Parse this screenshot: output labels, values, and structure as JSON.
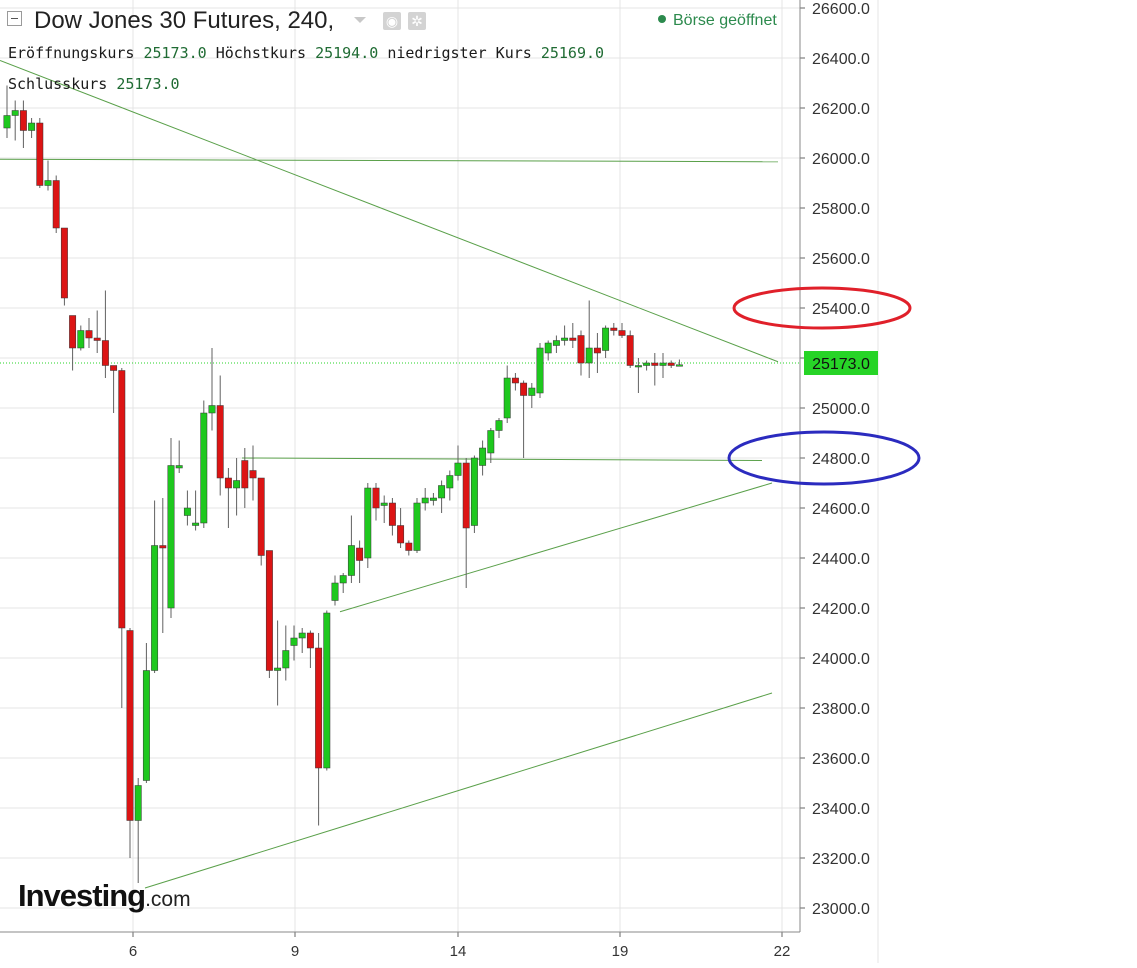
{
  "header": {
    "title": "Dow Jones 30 Futures, 240,",
    "status": "Börse geöffnet",
    "open_label": "Eröffnungskurs",
    "open_value": "25173.0",
    "high_label": "Höchstkurs",
    "high_value": "25194.0",
    "low_label": "niedrigster Kurs",
    "low_value": "25169.0",
    "close_label": "Schlusskurs",
    "close_value": "25173.0"
  },
  "logo": {
    "text": "Investing",
    "suffix": ".com"
  },
  "colors": {
    "up": "#1ec81e",
    "down": "#dc1414",
    "wick": "#606060",
    "trendline": "#5aa04a",
    "price_tag": "#27d427",
    "grid": "#e4e4e4",
    "ellipse_red": "#e0202a",
    "ellipse_blue": "#2b2bbf"
  },
  "chart_data": {
    "type": "candlestick",
    "timeframe": "240",
    "ylim": [
      22930,
      26700
    ],
    "y_ticks": [
      "26600.0",
      "26400.0",
      "26200.0",
      "26000.0",
      "25800.0",
      "25600.0",
      "25400.0",
      "25200.0",
      "25000.0",
      "24800.0",
      "24600.0",
      "24400.0",
      "24200.0",
      "24000.0",
      "23800.0",
      "23600.0",
      "23400.0",
      "23200.0",
      "23000.0"
    ],
    "x_ticks": [
      "6",
      "9",
      "14",
      "19",
      "22"
    ],
    "last_price": "25173.0",
    "candles": [
      {
        "o": 26120,
        "h": 26290,
        "l": 26080,
        "c": 26170
      },
      {
        "o": 26170,
        "h": 26230,
        "l": 26070,
        "c": 26190
      },
      {
        "o": 26190,
        "h": 26230,
        "l": 26040,
        "c": 26110
      },
      {
        "o": 26110,
        "h": 26160,
        "l": 26080,
        "c": 26140
      },
      {
        "o": 26140,
        "h": 26160,
        "l": 25880,
        "c": 25890
      },
      {
        "o": 25890,
        "h": 25990,
        "l": 25870,
        "c": 25910
      },
      {
        "o": 25910,
        "h": 25930,
        "l": 25700,
        "c": 25720
      },
      {
        "o": 25720,
        "h": 25720,
        "l": 25410,
        "c": 25440
      },
      {
        "o": 25370,
        "h": 25370,
        "l": 25150,
        "c": 25240
      },
      {
        "o": 25240,
        "h": 25330,
        "l": 25230,
        "c": 25310
      },
      {
        "o": 25310,
        "h": 25360,
        "l": 25240,
        "c": 25280
      },
      {
        "o": 25280,
        "h": 25390,
        "l": 25220,
        "c": 25270
      },
      {
        "o": 25270,
        "h": 25470,
        "l": 25120,
        "c": 25170
      },
      {
        "o": 25170,
        "h": 25170,
        "l": 24980,
        "c": 25150
      },
      {
        "o": 25150,
        "h": 25160,
        "l": 23800,
        "c": 24120
      },
      {
        "o": 24110,
        "h": 24120,
        "l": 23200,
        "c": 23350
      },
      {
        "o": 23350,
        "h": 23520,
        "l": 23100,
        "c": 23490
      },
      {
        "o": 23510,
        "h": 24060,
        "l": 23500,
        "c": 23950
      },
      {
        "o": 23950,
        "h": 24630,
        "l": 23940,
        "c": 24450
      },
      {
        "o": 24450,
        "h": 24640,
        "l": 24100,
        "c": 24440
      },
      {
        "o": 24200,
        "h": 24880,
        "l": 24160,
        "c": 24770
      },
      {
        "o": 24760,
        "h": 24870,
        "l": 24740,
        "c": 24770
      },
      {
        "o": 24570,
        "h": 24670,
        "l": 24530,
        "c": 24600
      },
      {
        "o": 24530,
        "h": 24670,
        "l": 24510,
        "c": 24540
      },
      {
        "o": 24540,
        "h": 25030,
        "l": 24520,
        "c": 24980
      },
      {
        "o": 24980,
        "h": 25240,
        "l": 24910,
        "c": 25010
      },
      {
        "o": 25010,
        "h": 25130,
        "l": 24650,
        "c": 24720
      },
      {
        "o": 24720,
        "h": 24760,
        "l": 24520,
        "c": 24680
      },
      {
        "o": 24680,
        "h": 24800,
        "l": 24570,
        "c": 24710
      },
      {
        "o": 24790,
        "h": 24840,
        "l": 24600,
        "c": 24680
      },
      {
        "o": 24750,
        "h": 24850,
        "l": 24630,
        "c": 24720
      },
      {
        "o": 24720,
        "h": 24720,
        "l": 24370,
        "c": 24410
      },
      {
        "o": 24430,
        "h": 24430,
        "l": 23920,
        "c": 23950
      },
      {
        "o": 23950,
        "h": 24150,
        "l": 23810,
        "c": 23960
      },
      {
        "o": 23960,
        "h": 24130,
        "l": 23910,
        "c": 24030
      },
      {
        "o": 24050,
        "h": 24130,
        "l": 23990,
        "c": 24080
      },
      {
        "o": 24080,
        "h": 24120,
        "l": 24020,
        "c": 24100
      },
      {
        "o": 24100,
        "h": 24110,
        "l": 23960,
        "c": 24040
      },
      {
        "o": 24040,
        "h": 24100,
        "l": 23330,
        "c": 23560
      },
      {
        "o": 23560,
        "h": 24190,
        "l": 23550,
        "c": 24180
      },
      {
        "o": 24230,
        "h": 24330,
        "l": 24210,
        "c": 24300
      },
      {
        "o": 24300,
        "h": 24340,
        "l": 24260,
        "c": 24330
      },
      {
        "o": 24330,
        "h": 24570,
        "l": 24300,
        "c": 24450
      },
      {
        "o": 24440,
        "h": 24470,
        "l": 24300,
        "c": 24390
      },
      {
        "o": 24400,
        "h": 24700,
        "l": 24360,
        "c": 24680
      },
      {
        "o": 24680,
        "h": 24700,
        "l": 24550,
        "c": 24600
      },
      {
        "o": 24610,
        "h": 24650,
        "l": 24540,
        "c": 24620
      },
      {
        "o": 24620,
        "h": 24640,
        "l": 24490,
        "c": 24530
      },
      {
        "o": 24530,
        "h": 24600,
        "l": 24440,
        "c": 24460
      },
      {
        "o": 24460,
        "h": 24470,
        "l": 24410,
        "c": 24430
      },
      {
        "o": 24430,
        "h": 24640,
        "l": 24420,
        "c": 24620
      },
      {
        "o": 24620,
        "h": 24680,
        "l": 24590,
        "c": 24640
      },
      {
        "o": 24630,
        "h": 24660,
        "l": 24610,
        "c": 24640
      },
      {
        "o": 24640,
        "h": 24710,
        "l": 24580,
        "c": 24690
      },
      {
        "o": 24680,
        "h": 24750,
        "l": 24630,
        "c": 24730
      },
      {
        "o": 24730,
        "h": 24850,
        "l": 24710,
        "c": 24780
      },
      {
        "o": 24780,
        "h": 24800,
        "l": 24280,
        "c": 24520
      },
      {
        "o": 24530,
        "h": 24810,
        "l": 24500,
        "c": 24800
      },
      {
        "o": 24770,
        "h": 24870,
        "l": 24730,
        "c": 24840
      },
      {
        "o": 24820,
        "h": 24920,
        "l": 24780,
        "c": 24910
      },
      {
        "o": 24910,
        "h": 24960,
        "l": 24880,
        "c": 24950
      },
      {
        "o": 24960,
        "h": 25170,
        "l": 24940,
        "c": 25120
      },
      {
        "o": 25120,
        "h": 25140,
        "l": 25070,
        "c": 25100
      },
      {
        "o": 25100,
        "h": 25110,
        "l": 24800,
        "c": 25050
      },
      {
        "o": 25050,
        "h": 25100,
        "l": 25000,
        "c": 25080
      },
      {
        "o": 25060,
        "h": 25260,
        "l": 25040,
        "c": 25240
      },
      {
        "o": 25220,
        "h": 25270,
        "l": 25190,
        "c": 25260
      },
      {
        "o": 25250,
        "h": 25290,
        "l": 25220,
        "c": 25270
      },
      {
        "o": 25270,
        "h": 25330,
        "l": 25250,
        "c": 25280
      },
      {
        "o": 25280,
        "h": 25340,
        "l": 25240,
        "c": 25270
      },
      {
        "o": 25290,
        "h": 25310,
        "l": 25130,
        "c": 25180
      },
      {
        "o": 25180,
        "h": 25430,
        "l": 25120,
        "c": 25240
      },
      {
        "o": 25240,
        "h": 25300,
        "l": 25140,
        "c": 25220
      },
      {
        "o": 25230,
        "h": 25330,
        "l": 25200,
        "c": 25320
      },
      {
        "o": 25320,
        "h": 25340,
        "l": 25290,
        "c": 25310
      },
      {
        "o": 25310,
        "h": 25340,
        "l": 25280,
        "c": 25290
      },
      {
        "o": 25290,
        "h": 25310,
        "l": 25160,
        "c": 25170
      },
      {
        "o": 25170,
        "h": 25200,
        "l": 25060,
        "c": 25170
      },
      {
        "o": 25170,
        "h": 25190,
        "l": 25150,
        "c": 25180
      },
      {
        "o": 25180,
        "h": 25220,
        "l": 25090,
        "c": 25170
      },
      {
        "o": 25170,
        "h": 25220,
        "l": 25120,
        "c": 25180
      },
      {
        "o": 25180,
        "h": 25190,
        "l": 25160,
        "c": 25170
      },
      {
        "o": 25173,
        "h": 25194,
        "l": 25169,
        "c": 25173
      }
    ]
  }
}
